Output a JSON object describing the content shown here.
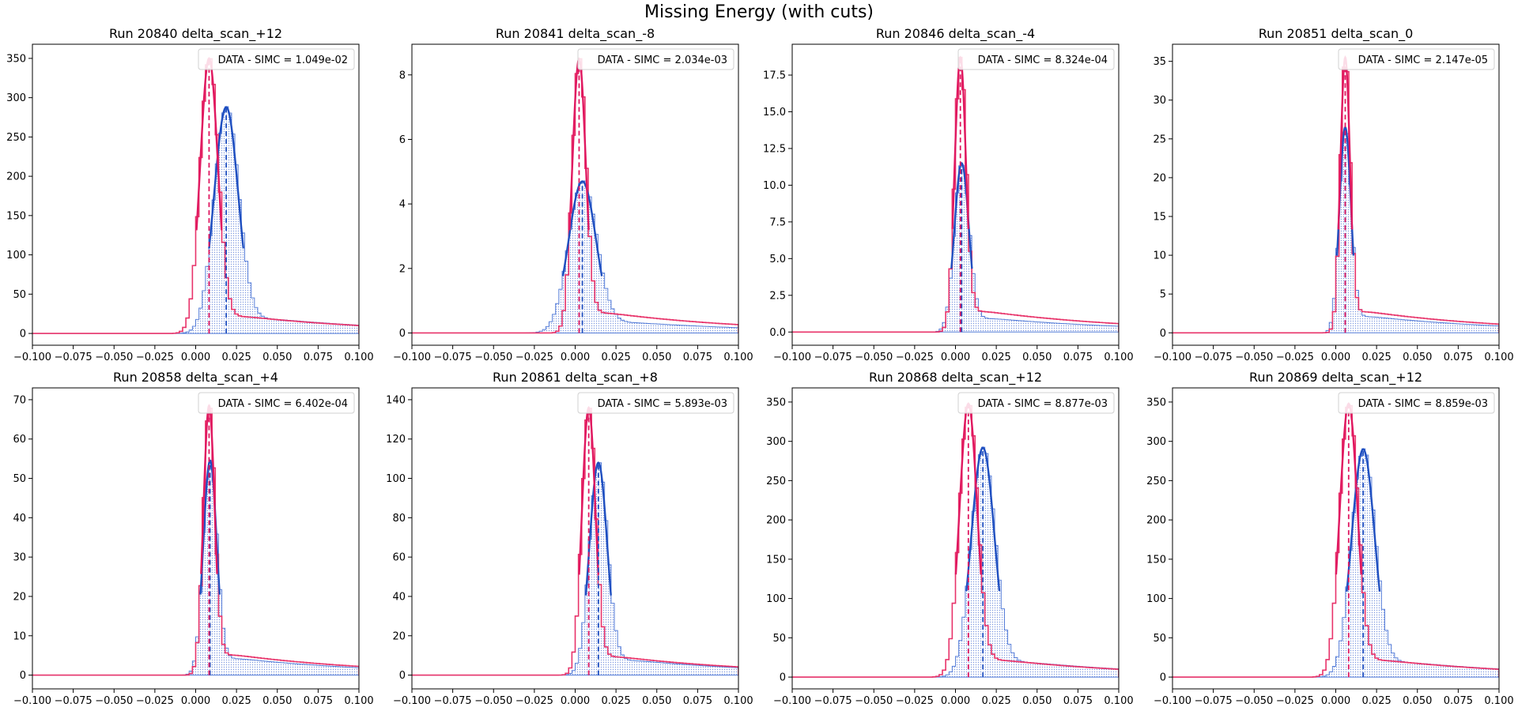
{
  "figure": {
    "title": "Missing Energy (with cuts)",
    "colors": {
      "data": "#2255cc",
      "data_fill": "#b3c4ef",
      "simc": "#e8336a",
      "data_fit": "#1f4fc0",
      "simc_fit": "#e01860"
    },
    "xticks": [
      -0.1,
      -0.075,
      -0.05,
      -0.025,
      0.0,
      0.025,
      0.05,
      0.075,
      0.1
    ],
    "xtick_labels": [
      "−0.100",
      "−0.075",
      "−0.050",
      "−0.025",
      "0.000",
      "0.025",
      "0.050",
      "0.075",
      "0.100"
    ],
    "xlim": [
      -0.1,
      0.1
    ]
  },
  "chart_data": [
    {
      "type": "bar",
      "title": "Run 20840 delta_scan_+12",
      "legend": "DATA - SIMC = 1.049e-02",
      "legend_loc": "upper right",
      "ylim": [
        -15,
        368
      ],
      "yticks": [
        0,
        50,
        100,
        150,
        200,
        250,
        300,
        350
      ],
      "ytick_labels": [
        "0",
        "50",
        "100",
        "150",
        "200",
        "250",
        "300",
        "350"
      ],
      "data_peak": 0.0187,
      "data_peak_height": 288,
      "data_width": 0.0075,
      "data_tail": 0.09,
      "simc_peak": 0.0082,
      "simc_peak_height": 350,
      "simc_width": 0.0055,
      "simc_tail": 0.08,
      "data_mean_line": 0.0187,
      "simc_mean_line": 0.0082
    },
    {
      "type": "bar",
      "title": "Run 20841 delta_scan_-8",
      "legend": "DATA - SIMC = 2.034e-03",
      "legend_loc": "upper right",
      "ylim": [
        -0.38,
        8.95
      ],
      "yticks": [
        0,
        2,
        4,
        6,
        8
      ],
      "ytick_labels": [
        "0",
        "2",
        "4",
        "6",
        "8"
      ],
      "data_peak": 0.0044,
      "data_peak_height": 4.7,
      "data_width": 0.0085,
      "data_tail": 0.1,
      "simc_peak": 0.0024,
      "simc_peak_height": 8.5,
      "simc_width": 0.0042,
      "simc_tail": 0.09,
      "data_mean_line": 0.0044,
      "simc_mean_line": 0.0024
    },
    {
      "type": "bar",
      "title": "Run 20846 delta_scan_-4",
      "legend": "DATA - SIMC = 8.324e-04",
      "legend_loc": "upper right",
      "ylim": [
        -0.9,
        19.6
      ],
      "yticks": [
        0,
        2.5,
        5,
        7.5,
        10,
        12.5,
        15,
        17.5
      ],
      "ytick_labels": [
        "0.0",
        "2.5",
        "5.0",
        "7.5",
        "10.0",
        "12.5",
        "15.0",
        "17.5"
      ],
      "data_peak": 0.0038,
      "data_peak_height": 11.5,
      "data_width": 0.0045,
      "data_tail": 0.1,
      "simc_peak": 0.003,
      "simc_peak_height": 18.7,
      "simc_width": 0.0035,
      "simc_tail": 0.09,
      "data_mean_line": 0.0038,
      "simc_mean_line": 0.003
    },
    {
      "type": "bar",
      "title": "Run 20851 delta_scan_0",
      "legend": "DATA - SIMC = 2.147e-05",
      "legend_loc": "upper right",
      "ylim": [
        -1.6,
        37.2
      ],
      "yticks": [
        0,
        5,
        10,
        15,
        20,
        25,
        30,
        35
      ],
      "ytick_labels": [
        "0",
        "5",
        "10",
        "15",
        "20",
        "25",
        "30",
        "35"
      ],
      "data_peak": 0.0058,
      "data_peak_height": 26.5,
      "data_width": 0.0036,
      "data_tail": 0.095,
      "simc_peak": 0.0058,
      "simc_peak_height": 35.5,
      "simc_width": 0.003,
      "simc_tail": 0.09,
      "data_mean_line": 0.0058,
      "simc_mean_line": 0.0058
    },
    {
      "type": "bar",
      "title": "Run 20858 delta_scan_+4",
      "legend": "DATA - SIMC = 6.402e-04",
      "legend_loc": "upper right",
      "ylim": [
        -3.5,
        73
      ],
      "yticks": [
        0,
        10,
        20,
        30,
        40,
        50,
        60,
        70
      ],
      "ytick_labels": [
        "0",
        "10",
        "20",
        "30",
        "40",
        "50",
        "60",
        "70"
      ],
      "data_peak": 0.0088,
      "data_peak_height": 54.5,
      "data_width": 0.0042,
      "data_tail": 0.095,
      "simc_peak": 0.0082,
      "simc_peak_height": 68.5,
      "simc_width": 0.0035,
      "simc_tail": 0.09,
      "data_mean_line": 0.0088,
      "simc_mean_line": 0.0082
    },
    {
      "type": "bar",
      "title": "Run 20861 delta_scan_+8",
      "legend": "DATA - SIMC = 5.893e-03",
      "legend_loc": "upper right",
      "ylim": [
        -7,
        146
      ],
      "yticks": [
        0,
        20,
        40,
        60,
        80,
        100,
        120,
        140
      ],
      "ytick_labels": [
        "0",
        "20",
        "40",
        "60",
        "80",
        "100",
        "120",
        "140"
      ],
      "data_peak": 0.0142,
      "data_peak_height": 108,
      "data_width": 0.0055,
      "data_tail": 0.09,
      "simc_peak": 0.0083,
      "simc_peak_height": 136,
      "simc_width": 0.0042,
      "simc_tail": 0.085,
      "data_mean_line": 0.0142,
      "simc_mean_line": 0.0083
    },
    {
      "type": "bar",
      "title": "Run 20868 delta_scan_+12",
      "legend": "DATA - SIMC = 8.877e-03",
      "legend_loc": "upper right",
      "ylim": [
        -15,
        368
      ],
      "yticks": [
        0,
        50,
        100,
        150,
        200,
        250,
        300,
        350
      ],
      "ytick_labels": [
        "0",
        "50",
        "100",
        "150",
        "200",
        "250",
        "300",
        "350"
      ],
      "data_peak": 0.0168,
      "data_peak_height": 292,
      "data_width": 0.0072,
      "data_tail": 0.09,
      "simc_peak": 0.0079,
      "simc_peak_height": 348,
      "simc_width": 0.0055,
      "simc_tail": 0.08,
      "data_mean_line": 0.0168,
      "simc_mean_line": 0.0079
    },
    {
      "type": "bar",
      "title": "Run 20869 delta_scan_+12",
      "legend": "DATA - SIMC = 8.859e-03",
      "legend_loc": "upper right",
      "ylim": [
        -15,
        368
      ],
      "yticks": [
        0,
        50,
        100,
        150,
        200,
        250,
        300,
        350
      ],
      "ytick_labels": [
        "0",
        "50",
        "100",
        "150",
        "200",
        "250",
        "300",
        "350"
      ],
      "data_peak": 0.0168,
      "data_peak_height": 290,
      "data_width": 0.0072,
      "data_tail": 0.09,
      "simc_peak": 0.0079,
      "simc_peak_height": 348,
      "simc_width": 0.0055,
      "simc_tail": 0.08,
      "data_mean_line": 0.0168,
      "simc_mean_line": 0.0079
    }
  ]
}
